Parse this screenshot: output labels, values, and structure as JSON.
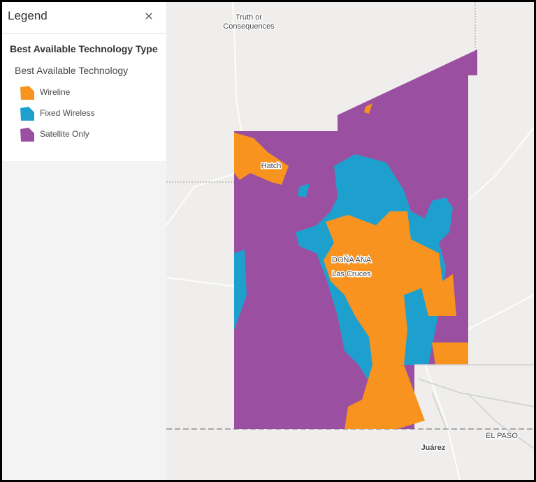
{
  "legend": {
    "title": "Legend",
    "layer_title": "Best Available Technology Type",
    "group_title": "Best Available Technology",
    "items": [
      {
        "label": "Wireline",
        "color": "#f7931e"
      },
      {
        "label": "Fixed Wireless",
        "color": "#1ea0cf"
      },
      {
        "label": "Satellite Only",
        "color": "#9b4fa0"
      }
    ]
  },
  "map": {
    "labels": [
      {
        "lines": [
          "Truth or",
          "Consequences"
        ]
      },
      {
        "lines": [
          "Hatch"
        ]
      },
      {
        "lines": [
          "DOÑA ANA"
        ]
      },
      {
        "lines": [
          "Las Cruces"
        ]
      },
      {
        "lines": [
          "EL PASO"
        ]
      },
      {
        "lines": [
          "Juárez"
        ]
      }
    ]
  }
}
